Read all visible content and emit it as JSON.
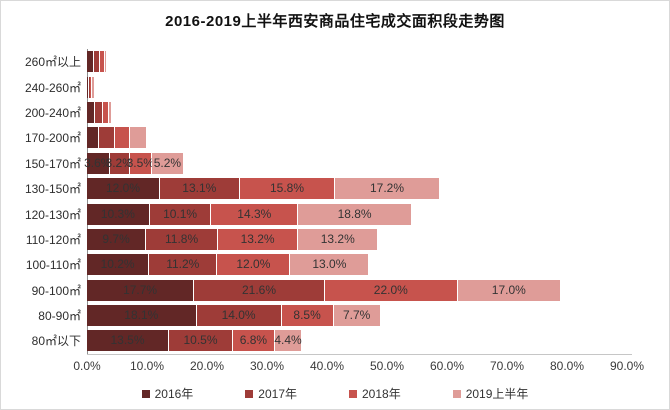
{
  "page": {
    "title": "2016-2019上半年西安商品住宅成交面积段走势图"
  },
  "colors": {
    "series_2016": "#622726",
    "series_2017": "#9e3c38",
    "series_2018": "#c7534d",
    "series_2019": "#df9c98",
    "value_label_text": "#333333",
    "y_axis_line": "#8f8f8f",
    "x_axis_line": "#c6c6c6",
    "page_border": "#d9d9d9"
  },
  "chart_data": {
    "type": "bar",
    "orientation": "horizontal",
    "stacked": true,
    "title": "2016-2019上半年西安商品住宅成交面积段走势图",
    "categories": [
      "260㎡以上",
      "240-260㎡",
      "200-240㎡",
      "170-200㎡",
      "150-170㎡",
      "130-150㎡",
      "120-130㎡",
      "110-120㎡",
      "100-110㎡",
      "90-100㎡",
      "80-90㎡",
      "80㎡以下"
    ],
    "series": [
      {
        "name": "2016年",
        "color": "#622726",
        "values": [
          1.0,
          0.1,
          1.2,
          1.9,
          3.6,
          12.0,
          10.3,
          9.7,
          10.2,
          17.7,
          18.1,
          13.5
        ]
      },
      {
        "name": "2017年",
        "color": "#9e3c38",
        "values": [
          0.9,
          0.1,
          1.2,
          2.5,
          3.2,
          13.1,
          10.1,
          11.8,
          11.2,
          21.6,
          14.0,
          10.5
        ]
      },
      {
        "name": "2018年",
        "color": "#c7534d",
        "values": [
          0.6,
          0.1,
          0.7,
          2.2,
          3.5,
          15.8,
          14.3,
          13.2,
          12.0,
          22.0,
          8.5,
          6.8
        ]
      },
      {
        "name": "2019上半年",
        "color": "#df9c98",
        "values": [
          0.2,
          0.3,
          0.4,
          2.7,
          5.2,
          17.2,
          18.8,
          13.2,
          13.0,
          17.0,
          7.7,
          4.4
        ]
      }
    ],
    "value_labels_visible": [
      false,
      false,
      false,
      false,
      true,
      true,
      true,
      true,
      true,
      true,
      true,
      true
    ],
    "value_label_suffix": "%",
    "xlim": [
      0,
      90
    ],
    "x_ticks": [
      "0.0%",
      "10.0%",
      "20.0%",
      "30.0%",
      "40.0%",
      "50.0%",
      "60.0%",
      "70.0%",
      "80.0%",
      "90.0%"
    ],
    "grid": false,
    "legend_position": "bottom"
  }
}
